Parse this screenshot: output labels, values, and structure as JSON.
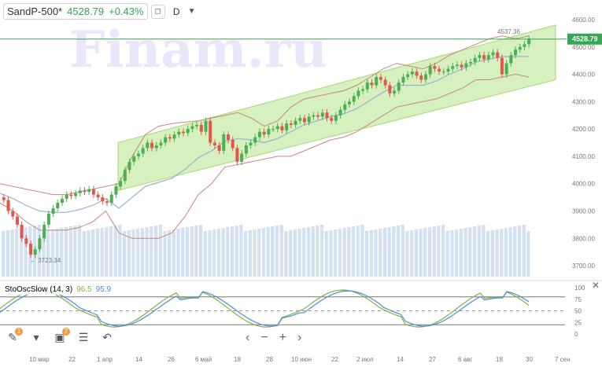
{
  "header": {
    "symbol": "SandP-500*",
    "price": "4528.79",
    "change": "+0.43%",
    "period": "D"
  },
  "watermark": "Finam.ru",
  "price_label": "4528.79",
  "max_label": "4537.36",
  "min_label": "3723.34",
  "indicator": {
    "name": "StoOscSlow (14, 3)",
    "k": "96.5",
    "d": "95.9"
  },
  "colors": {
    "up": "#4caf50",
    "down": "#e0574f",
    "price_line": "#33a854",
    "channel": "#b4e38a",
    "bollinger": "#c8887a",
    "ma": "#9ab1d1",
    "volume": "#d3e1f0",
    "sto_k": "#7fb241",
    "sto_d": "#4a8fd6"
  },
  "icons": [
    "pencil-icon",
    "layers-icon",
    "chart-template-icon",
    "settings-list-icon",
    "undo-icon"
  ],
  "nav": {
    "left": "‹",
    "minus": "−",
    "plus": "+",
    "right": "›"
  },
  "chart_data": {
    "type": "candlestick",
    "ylim": [
      3660,
      4620
    ],
    "y_ticks": [
      3700,
      3800,
      3900,
      4000,
      4100,
      4200,
      4300,
      4400,
      4500,
      4600
    ],
    "y_tick_labels": [
      "3700.00",
      "3800.00",
      "3900.00",
      "4000.00",
      "4100.00",
      "4200.00",
      "4300.00",
      "4400.00",
      "4500.00",
      "4600.00"
    ],
    "x_labels": [
      "10 мар",
      "22",
      "1 апр",
      "14",
      "26",
      "6 май",
      "18",
      "28",
      "10 июн",
      "22",
      "2 июл",
      "14",
      "27",
      "6 авг",
      "18",
      "30",
      "7 сен"
    ],
    "close_series": [
      3940,
      3900,
      3880,
      3850,
      3800,
      3780,
      3740,
      3760,
      3800,
      3850,
      3890,
      3910,
      3930,
      3945,
      3960,
      3955,
      3965,
      3975,
      3970,
      3980,
      3960,
      3950,
      3935,
      3930,
      3960,
      3990,
      4010,
      4050,
      4080,
      4100,
      4110,
      4130,
      4150,
      4130,
      4140,
      4150,
      4170,
      4165,
      4180,
      4190,
      4185,
      4200,
      4210,
      4215,
      4190,
      4230,
      4150,
      4140,
      4120,
      4180,
      4160,
      4130,
      4080,
      4110,
      4140,
      4150,
      4170,
      4190,
      4180,
      4200,
      4200,
      4210,
      4195,
      4220,
      4215,
      4230,
      4240,
      4225,
      4245,
      4250,
      4245,
      4260,
      4240,
      4230,
      4250,
      4270,
      4290,
      4300,
      4320,
      4340,
      4345,
      4370,
      4360,
      4390,
      4380,
      4360,
      4330,
      4340,
      4370,
      4390,
      4400,
      4410,
      4395,
      4380,
      4400,
      4430,
      4420,
      4410,
      4410,
      4420,
      4430,
      4435,
      4425,
      4440,
      4445,
      4460,
      4470,
      4455,
      4470,
      4480,
      4460,
      4400,
      4440,
      4470,
      4490,
      4500,
      4510,
      4530
    ],
    "upper_band": [
      4000,
      3990,
      3980,
      3970,
      3960,
      3960,
      3970,
      3980,
      3990,
      4000,
      4100,
      4180,
      4210,
      4220,
      4225,
      4230,
      4240,
      4250,
      4260,
      4240,
      4210,
      4230,
      4280,
      4310,
      4320,
      4330,
      4340,
      4360,
      4390,
      4420,
      4440,
      4430,
      4420,
      4440,
      4470,
      4490,
      4510,
      4530,
      4540,
      4530,
      4540
    ],
    "lower_band": [
      3930,
      3900,
      3860,
      3830,
      3830,
      3830,
      3840,
      3860,
      3900,
      3820,
      3800,
      3800,
      3800,
      3820,
      3880,
      3960,
      4000,
      4060,
      4070,
      4080,
      4090,
      4100,
      4100,
      4120,
      4140,
      4160,
      4170,
      4190,
      4220,
      4250,
      4280,
      4290,
      4300,
      4310,
      4330,
      4350,
      4380,
      4380,
      4390,
      4400,
      4390
    ],
    "channel_upper": [
      [
        4150,
        4580
      ]
    ],
    "channel_lower": [
      [
        3975,
        4380
      ]
    ],
    "stochastic": {
      "levels": [
        80,
        50,
        20
      ],
      "ticks": [
        100,
        75,
        50,
        25,
        0
      ]
    }
  }
}
